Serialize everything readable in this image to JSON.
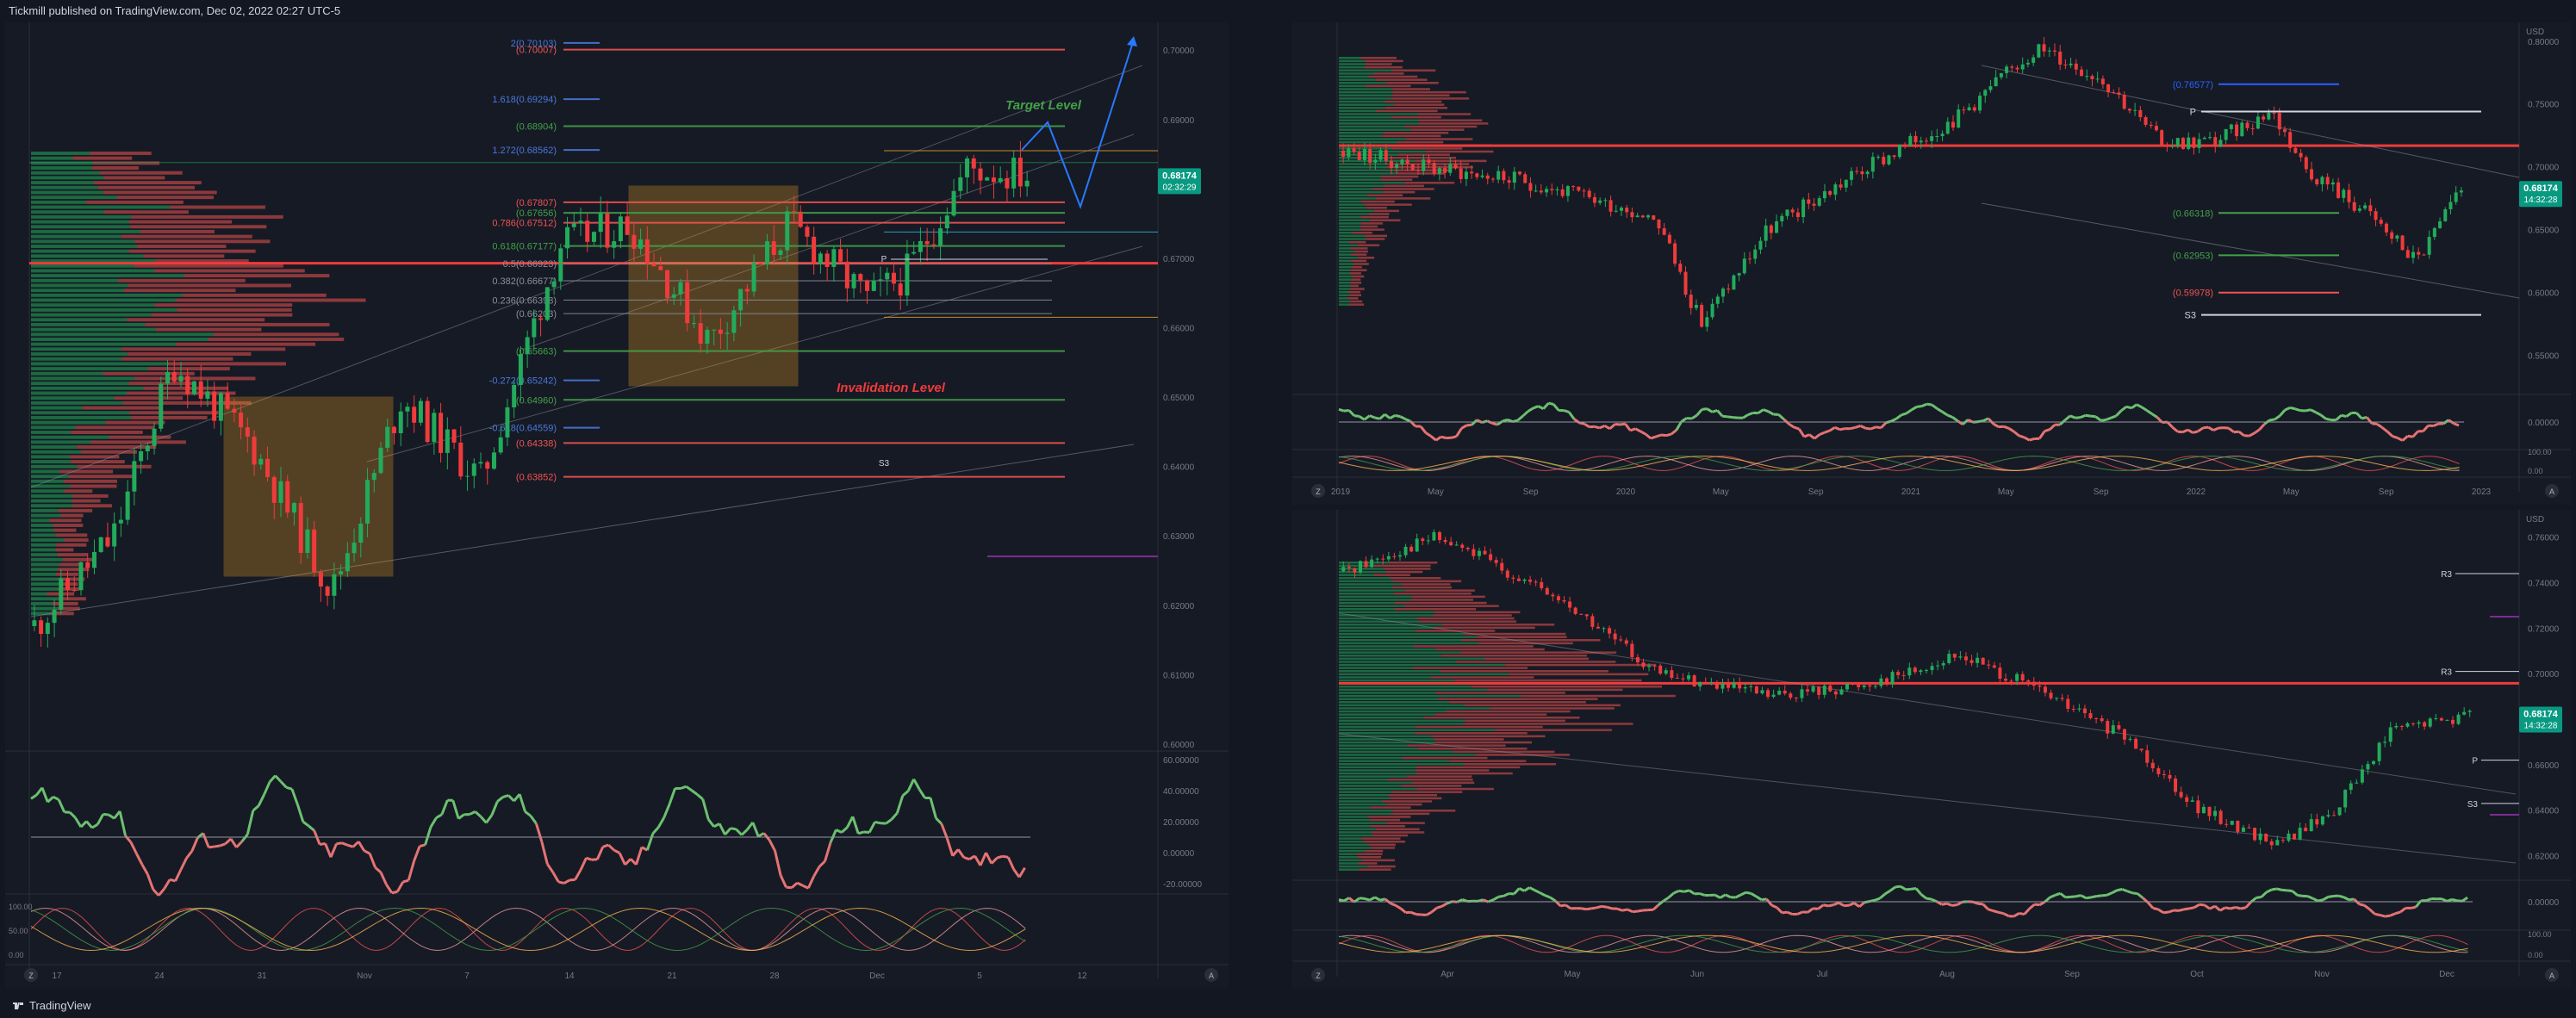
{
  "header": {
    "published_text": "Tickmill published on TradingView.com, Dec 02, 2022 02:27 UTC-5"
  },
  "footer": {
    "brand": "TradingView"
  },
  "colors": {
    "bg": "#161a25",
    "grid": "#1f2430",
    "up": "#26a69a",
    "up_green": "#22ab5b",
    "down": "#ef5350",
    "text": "#787b86",
    "box": "#f5a623",
    "blue": "#2962ff",
    "price_badge": "#089981"
  },
  "left_chart": {
    "price_axis": [
      "0.70000",
      "0.69000",
      "0.68000",
      "0.67000",
      "0.66000",
      "0.65000",
      "0.64000",
      "0.63000",
      "0.62000",
      "0.61000",
      "0.60000"
    ],
    "price_badge": {
      "value": "0.68174",
      "time": "02:32:29"
    },
    "time_axis": [
      "17",
      "24",
      "31",
      "Nov",
      "7",
      "14",
      "21",
      "28",
      "Dec",
      "5",
      "12"
    ],
    "fib_levels": [
      {
        "label": "2(0.70103)",
        "color": "#4a78d9"
      },
      {
        "label": "(0.70007)",
        "color": "#ef5350"
      },
      {
        "label": "1.618(0.69294)",
        "color": "#4a78d9"
      },
      {
        "label": "(0.68904)",
        "color": "#43a047"
      },
      {
        "label": "1.272(0.68562)",
        "color": "#4a78d9"
      },
      {
        "label": "(0.67807)",
        "color": "#ef5350"
      },
      {
        "label": "(0.67656)",
        "color": "#43a047"
      },
      {
        "label": "0.786(0.67512)",
        "color": "#ef5350"
      },
      {
        "label": "0.618(0.67177)",
        "color": "#43a047"
      },
      {
        "label": "0.5(0.66923)",
        "color": "#8a8f9a"
      },
      {
        "label": "0.382(0.66677)",
        "color": "#8a8f9a"
      },
      {
        "label": "0.236(0.66398)",
        "color": "#8a8f9a"
      },
      {
        "label": "(0.66203)",
        "color": "#8a8f9a"
      },
      {
        "label": "(0.65663)",
        "color": "#43a047"
      },
      {
        "label": "-0.272(0.65242)",
        "color": "#4a78d9"
      },
      {
        "label": "(0.64960)",
        "color": "#43a047"
      },
      {
        "label": "-0.618(0.64559)",
        "color": "#4a78d9"
      },
      {
        "label": "(0.64338)",
        "color": "#ef5350"
      },
      {
        "label": "(0.63852)",
        "color": "#ef5350"
      }
    ],
    "annotations": {
      "target": "Target Level",
      "invalidation": "Invalidation Level",
      "pivot": "P",
      "s3": "S3"
    },
    "osc_axis": [
      "60.00000",
      "40.00000",
      "20.00000",
      "0.00000",
      "-20.00000"
    ],
    "stoch_axis": [
      "100.00",
      "50.00",
      "0.00"
    ]
  },
  "top_right_chart": {
    "currency": "USD",
    "price_axis": [
      "0.80000",
      "0.75000",
      "0.70000",
      "0.65000",
      "0.60000",
      "0.55000"
    ],
    "price_badge": {
      "value": "0.68174",
      "time": "14:32:28"
    },
    "time_axis": [
      "2019",
      "May",
      "Sep",
      "2020",
      "May",
      "Sep",
      "2021",
      "May",
      "Sep",
      "2022",
      "May",
      "Sep",
      "2023"
    ],
    "levels": [
      {
        "label": "(0.76577)",
        "color": "#2962ff"
      },
      {
        "label": "(0.66318)",
        "color": "#43a047"
      },
      {
        "label": "(0.62953)",
        "color": "#43a047"
      },
      {
        "label": "(0.59978)",
        "color": "#ef5350"
      },
      {
        "label": "P",
        "color": "#d1d4dc"
      },
      {
        "label": "S3",
        "color": "#d1d4dc"
      }
    ],
    "osc_axis": [
      "0.00000"
    ],
    "stoch_axis": [
      "100.00",
      "0.00"
    ]
  },
  "bottom_right_chart": {
    "currency": "USD",
    "price_axis": [
      "0.76000",
      "0.74000",
      "0.72000",
      "0.70000",
      "0.68000",
      "0.66000",
      "0.64000",
      "0.62000"
    ],
    "price_badge": {
      "value": "0.68174",
      "time": "14:32:28"
    },
    "time_axis": [
      "Apr",
      "May",
      "Jun",
      "Jul",
      "Aug",
      "Sep",
      "Oct",
      "Nov",
      "Dec"
    ],
    "levels": [
      {
        "label": "R3"
      },
      {
        "label": "R3"
      },
      {
        "label": "P"
      },
      {
        "label": "S3"
      }
    ],
    "osc_axis": [
      "0.00000"
    ],
    "stoch_axis": [
      "100.00",
      "0.00"
    ]
  }
}
